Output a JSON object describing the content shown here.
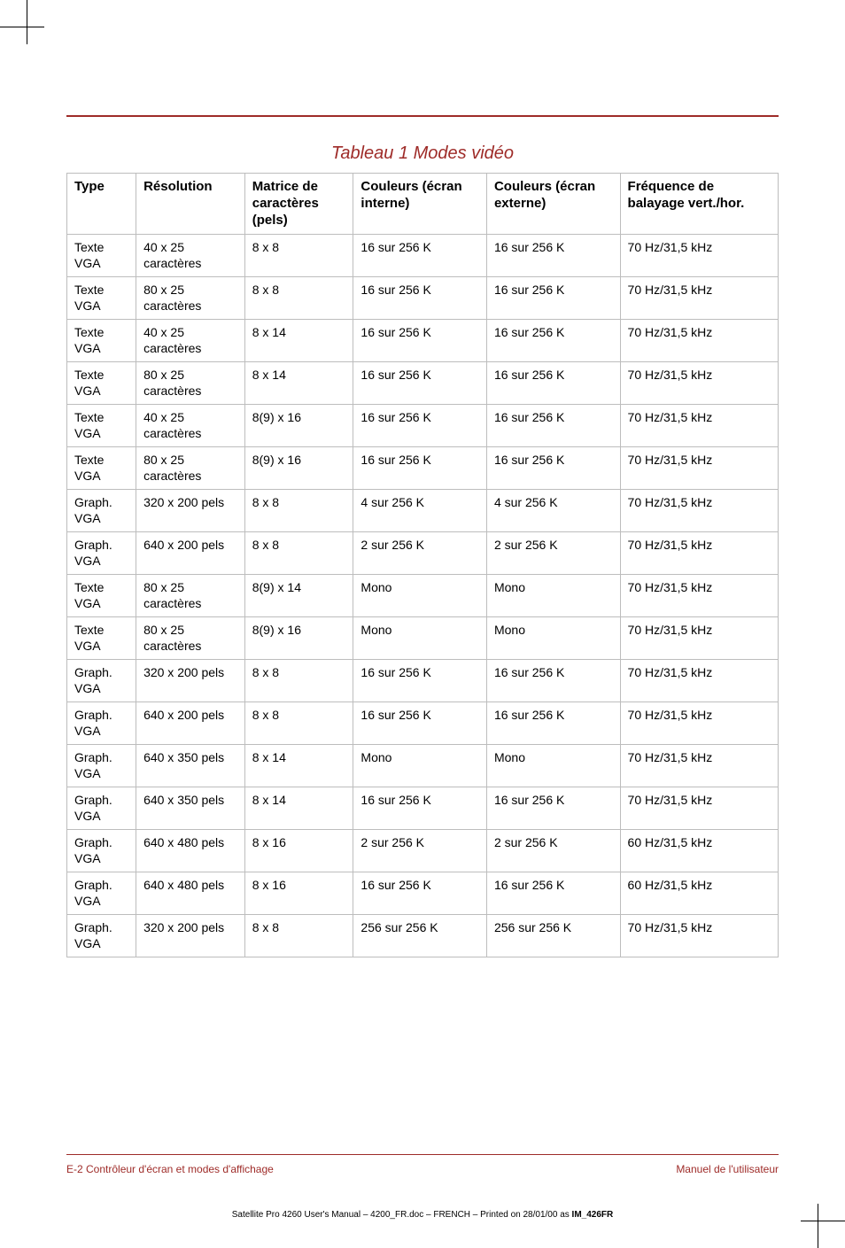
{
  "title": "Tableau 1 Modes vidéo",
  "headers": {
    "type": "Type",
    "resolution": "Résolution",
    "matrix": "Matrice de caractères (pels)",
    "colors_int": "Couleurs (écran interne)",
    "colors_ext": "Couleurs (écran externe)",
    "freq": "Fréquence de balayage vert./hor."
  },
  "rows": [
    {
      "type": "Texte VGA",
      "res": "40 x 25 caractères",
      "matrix": "8 x 8",
      "cint": "16 sur 256 K",
      "cext": "16 sur 256 K",
      "freq": "70 Hz/31,5 kHz"
    },
    {
      "type": "Texte VGA",
      "res": "80 x 25 caractères",
      "matrix": "8 x 8",
      "cint": "16 sur 256 K",
      "cext": "16 sur 256 K",
      "freq": "70 Hz/31,5 kHz"
    },
    {
      "type": "Texte VGA",
      "res": "40 x 25 caractères",
      "matrix": "8 x 14",
      "cint": "16 sur 256 K",
      "cext": "16 sur 256 K",
      "freq": "70 Hz/31,5 kHz"
    },
    {
      "type": "Texte VGA",
      "res": "80 x 25 caractères",
      "matrix": "8 x 14",
      "cint": "16 sur 256 K",
      "cext": "16 sur 256 K",
      "freq": "70 Hz/31,5 kHz"
    },
    {
      "type": "Texte VGA",
      "res": "40 x 25 caractères",
      "matrix": "8(9) x 16",
      "cint": "16 sur 256 K",
      "cext": "16 sur 256 K",
      "freq": "70 Hz/31,5 kHz"
    },
    {
      "type": "Texte VGA",
      "res": "80 x 25 caractères",
      "matrix": "8(9) x 16",
      "cint": "16 sur 256 K",
      "cext": "16 sur 256 K",
      "freq": "70 Hz/31,5 kHz"
    },
    {
      "type": "Graph. VGA",
      "res": "320 x 200 pels",
      "matrix": "8 x 8",
      "cint": "4 sur 256 K",
      "cext": "4 sur 256 K",
      "freq": "70 Hz/31,5 kHz"
    },
    {
      "type": "Graph. VGA",
      "res": "640 x 200 pels",
      "matrix": "8 x 8",
      "cint": "2 sur 256 K",
      "cext": "2 sur 256 K",
      "freq": "70 Hz/31,5 kHz"
    },
    {
      "type": "Texte VGA",
      "res": "80 x 25 caractères",
      "matrix": "8(9) x 14",
      "cint": "Mono",
      "cext": "Mono",
      "freq": "70 Hz/31,5 kHz"
    },
    {
      "type": "Texte VGA",
      "res": "80 x 25 caractères",
      "matrix": "8(9) x 16",
      "cint": "Mono",
      "cext": "Mono",
      "freq": "70 Hz/31,5 kHz"
    },
    {
      "type": "Graph. VGA",
      "res": "320 x 200 pels",
      "matrix": "8 x 8",
      "cint": "16 sur 256 K",
      "cext": "16 sur 256 K",
      "freq": "70 Hz/31,5 kHz"
    },
    {
      "type": "Graph. VGA",
      "res": "640 x 200 pels",
      "matrix": "8 x 8",
      "cint": "16 sur 256 K",
      "cext": "16 sur 256 K",
      "freq": "70 Hz/31,5 kHz"
    },
    {
      "type": "Graph. VGA",
      "res": "640 x 350 pels",
      "matrix": "8 x 14",
      "cint": "Mono",
      "cext": "Mono",
      "freq": "70 Hz/31,5 kHz"
    },
    {
      "type": "Graph. VGA",
      "res": "640 x 350 pels",
      "matrix": "8 x 14",
      "cint": "16 sur 256 K",
      "cext": "16 sur 256 K",
      "freq": "70 Hz/31,5 kHz"
    },
    {
      "type": "Graph. VGA",
      "res": "640 x 480 pels",
      "matrix": "8 x 16",
      "cint": "2 sur 256 K",
      "cext": "2 sur 256 K",
      "freq": "60 Hz/31,5 kHz"
    },
    {
      "type": "Graph. VGA",
      "res": "640 x 480 pels",
      "matrix": "8 x 16",
      "cint": "16 sur 256 K",
      "cext": "16 sur 256 K",
      "freq": "60 Hz/31,5 kHz"
    },
    {
      "type": "Graph. VGA",
      "res": "320 x 200 pels",
      "matrix": "8 x 8",
      "cint": "256 sur 256 K",
      "cext": "256 sur 256 K",
      "freq": "70 Hz/31,5 kHz"
    }
  ],
  "footer": {
    "left": "E-2  Contrôleur d'écran et modes d'affichage",
    "right": "Manuel de l'utilisateur"
  },
  "imprint_prefix": "Satellite Pro 4260 User's Manual  – 4200_FR.doc – FRENCH – Printed on 28/01/00 as ",
  "imprint_bold": "IM_426FR",
  "colors": {
    "accent": "#9e2b28",
    "border": "#bdbdbd"
  }
}
